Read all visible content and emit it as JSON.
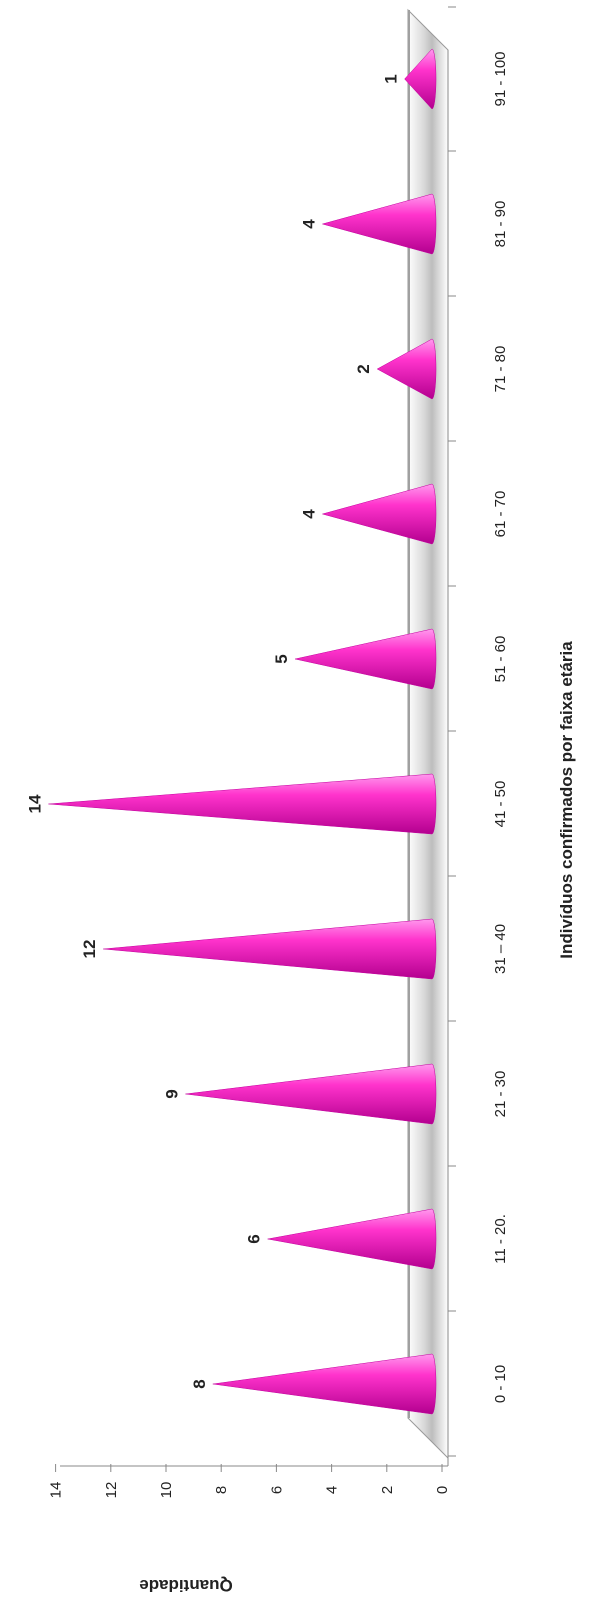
{
  "chart_data": {
    "type": "bar",
    "title": "",
    "xlabel": "Indivíduos confirmados por faixa etária",
    "ylabel": "Quantidade",
    "categories": [
      "0 - 10",
      "11 - 20.",
      "21 - 30",
      "31 – 40",
      "41 - 50",
      "51 - 60",
      "61 - 70",
      "71 - 80",
      "81 - 90",
      "91 - 100"
    ],
    "values": [
      8,
      6,
      9,
      12,
      14,
      5,
      4,
      2,
      4,
      1
    ],
    "ylim": [
      0,
      14
    ],
    "yticks": [
      "0",
      "2",
      "4",
      "6",
      "8",
      "10",
      "12",
      "14"
    ],
    "data_labels": [
      "8",
      "6",
      "9",
      "12",
      "14",
      "5",
      "4",
      "2",
      "4",
      "1"
    ],
    "shape": "cone",
    "orientation": "rotated",
    "colors": {
      "cone": "#ff33cc",
      "cone_light": "#ff99ee",
      "cone_dark": "#b3008f"
    },
    "grid": false,
    "legend": "none"
  }
}
